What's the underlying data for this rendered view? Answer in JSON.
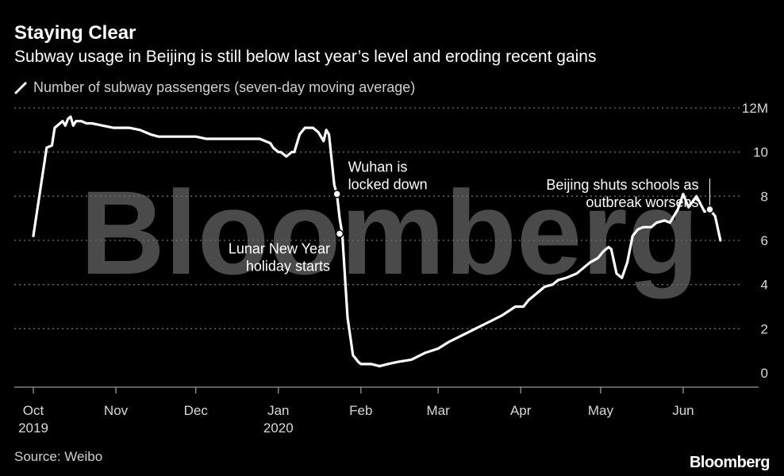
{
  "header": {
    "title": "Staying Clear",
    "subtitle": "Subway usage in Beijing is still below last year’s level and eroding recent gains"
  },
  "footer": {
    "source": "Source: Weibo",
    "brand": "Bloomberg"
  },
  "watermark": "Bloomberg",
  "colors": {
    "background": "#000000",
    "line": "#ffffff",
    "grid": "#6e6e6e",
    "watermark": "#4a4a4a"
  },
  "chart_data": {
    "type": "line",
    "title": "Staying Clear",
    "subtitle": "Subway usage in Beijing is still below last year’s level and eroding recent gains",
    "legend_position": "top-left",
    "grid": true,
    "y_unit_label": "12M",
    "ylim": [
      0,
      12
    ],
    "yticks": [
      0,
      2,
      4,
      6,
      8,
      10,
      12
    ],
    "ytick_labels": [
      "0",
      "2",
      "4",
      "6",
      "8",
      "10",
      "12M"
    ],
    "xlim": [
      "2019-10-01",
      "2020-06-18"
    ],
    "xticks": [
      {
        "date": "2019-10-01",
        "label": "Oct",
        "sub": "2019"
      },
      {
        "date": "2019-11-01",
        "label": "Nov",
        "sub": ""
      },
      {
        "date": "2019-12-01",
        "label": "Dec",
        "sub": ""
      },
      {
        "date": "2020-01-01",
        "label": "Jan",
        "sub": "2020"
      },
      {
        "date": "2020-02-01",
        "label": "Feb",
        "sub": ""
      },
      {
        "date": "2020-03-01",
        "label": "Mar",
        "sub": ""
      },
      {
        "date": "2020-04-01",
        "label": "Apr",
        "sub": ""
      },
      {
        "date": "2020-05-01",
        "label": "May",
        "sub": ""
      },
      {
        "date": "2020-06-01",
        "label": "Jun",
        "sub": ""
      }
    ],
    "series": [
      {
        "name": "Number of subway passengers (seven-day moving average)",
        "x": [
          "2019-10-01",
          "2019-10-03",
          "2019-10-06",
          "2019-10-08",
          "2019-10-09",
          "2019-10-11",
          "2019-10-12",
          "2019-10-13",
          "2019-10-14",
          "2019-10-15",
          "2019-10-16",
          "2019-10-17",
          "2019-10-19",
          "2019-10-21",
          "2019-10-23",
          "2019-10-27",
          "2019-10-31",
          "2019-11-03",
          "2019-11-06",
          "2019-11-10",
          "2019-11-14",
          "2019-11-17",
          "2019-11-20",
          "2019-11-24",
          "2019-11-28",
          "2019-12-01",
          "2019-12-05",
          "2019-12-09",
          "2019-12-13",
          "2019-12-17",
          "2019-12-21",
          "2019-12-25",
          "2019-12-29",
          "2019-12-30",
          "2019-12-31",
          "2020-01-01",
          "2020-01-02",
          "2020-01-04",
          "2020-01-06",
          "2020-01-07",
          "2020-01-09",
          "2020-01-11",
          "2020-01-14",
          "2020-01-16",
          "2020-01-18",
          "2020-01-19",
          "2020-01-20",
          "2020-01-22",
          "2020-01-23",
          "2020-01-24",
          "2020-01-25",
          "2020-01-27",
          "2020-01-29",
          "2020-01-31",
          "2020-02-01",
          "2020-02-03",
          "2020-02-05",
          "2020-02-08",
          "2020-02-11",
          "2020-02-15",
          "2020-02-20",
          "2020-02-25",
          "2020-03-01",
          "2020-03-05",
          "2020-03-10",
          "2020-03-15",
          "2020-03-20",
          "2020-03-25",
          "2020-03-30",
          "2020-04-02",
          "2020-04-04",
          "2020-04-06",
          "2020-04-10",
          "2020-04-13",
          "2020-04-15",
          "2020-04-18",
          "2020-04-22",
          "2020-04-27",
          "2020-04-30",
          "2020-05-02",
          "2020-05-04",
          "2020-05-05",
          "2020-05-07",
          "2020-05-09",
          "2020-05-11",
          "2020-05-13",
          "2020-05-15",
          "2020-05-17",
          "2020-05-20",
          "2020-05-22",
          "2020-05-25",
          "2020-05-27",
          "2020-05-30",
          "2020-06-01",
          "2020-06-03",
          "2020-06-06",
          "2020-06-09",
          "2020-06-11",
          "2020-06-13",
          "2020-06-15"
        ],
        "values": [
          6.2,
          7.8,
          10.2,
          10.3,
          11.1,
          11.3,
          11.4,
          11.2,
          11.5,
          11.6,
          11.2,
          11.4,
          11.4,
          11.3,
          11.3,
          11.2,
          11.1,
          11.1,
          11.1,
          11.0,
          10.8,
          10.7,
          10.7,
          10.7,
          10.7,
          10.7,
          10.6,
          10.6,
          10.6,
          10.6,
          10.6,
          10.6,
          10.4,
          10.2,
          10.1,
          10.0,
          10.0,
          9.8,
          10.0,
          10.0,
          10.8,
          11.1,
          11.1,
          10.9,
          10.5,
          11.0,
          10.8,
          8.5,
          8.1,
          7.0,
          6.3,
          2.5,
          0.8,
          0.5,
          0.4,
          0.4,
          0.4,
          0.3,
          0.4,
          0.5,
          0.6,
          0.9,
          1.1,
          1.4,
          1.7,
          2.0,
          2.3,
          2.6,
          3.0,
          3.0,
          3.3,
          3.5,
          3.9,
          4.0,
          4.2,
          4.3,
          4.5,
          5.0,
          5.2,
          5.5,
          5.7,
          5.6,
          4.5,
          4.3,
          5.0,
          6.2,
          6.5,
          6.6,
          6.6,
          6.8,
          6.9,
          6.8,
          7.4,
          8.1,
          7.5,
          8.0,
          7.3,
          7.4,
          7.1,
          6.0
        ]
      }
    ],
    "annotations": [
      {
        "text": [
          "Wuhan is",
          "locked down"
        ],
        "date": "2020-01-23",
        "value": 8.1
      },
      {
        "text": [
          "Lunar New Year",
          "holiday starts"
        ],
        "date": "2020-01-24",
        "value": 6.3
      },
      {
        "text": [
          "Beijing shuts schools as",
          "outbreak worsens"
        ],
        "date": "2020-06-11",
        "value": 7.4
      }
    ]
  }
}
